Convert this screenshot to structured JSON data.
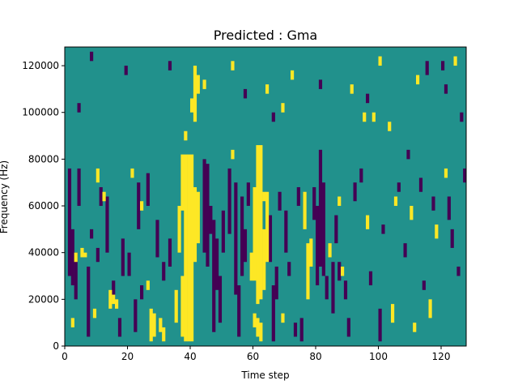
{
  "chart_data": {
    "type": "heatmap",
    "title": "Predicted : Gma",
    "xlabel": "Time step",
    "ylabel": "Frequency (Hz)",
    "xlim": [
      0,
      128
    ],
    "ylim": [
      0,
      128000
    ],
    "x_ticks": [
      0,
      20,
      40,
      60,
      80,
      100,
      120
    ],
    "y_ticks": [
      0,
      20000,
      40000,
      60000,
      80000,
      100000,
      120000
    ],
    "x_tick_labels": [
      "0",
      "20",
      "40",
      "60",
      "80",
      "100",
      "120"
    ],
    "y_tick_labels": [
      "0",
      "20000",
      "40000",
      "60000",
      "80000",
      "100000",
      "120000"
    ],
    "grid": false,
    "grid_shape": {
      "time_steps": 128,
      "frequency_bins": 128,
      "bin_hz": 1000
    },
    "levels": {
      "low": 0,
      "mid": 1,
      "high": 2
    },
    "background_level": "mid",
    "colors": {
      "low": "#440154",
      "mid": "#21918c",
      "high": "#fde725"
    },
    "high_cells": [
      [
        38,
        2,
        82
      ],
      [
        39,
        2,
        82
      ],
      [
        40,
        2,
        82
      ],
      [
        37,
        58,
        82
      ],
      [
        41,
        36,
        68
      ],
      [
        42,
        44,
        66
      ],
      [
        61,
        18,
        86
      ],
      [
        62,
        20,
        86
      ],
      [
        63,
        24,
        50
      ],
      [
        60,
        28,
        68
      ],
      [
        64,
        36,
        66
      ],
      [
        59,
        28,
        40
      ],
      [
        77,
        20,
        44
      ],
      [
        78,
        34,
        46
      ],
      [
        76,
        50,
        66
      ],
      [
        36,
        40,
        60
      ],
      [
        35,
        10,
        24
      ],
      [
        37,
        4,
        30
      ],
      [
        40,
        100,
        106
      ],
      [
        41,
        96,
        120
      ],
      [
        42,
        108,
        116
      ],
      [
        38,
        88,
        92
      ],
      [
        64,
        108,
        112
      ],
      [
        63,
        62,
        66
      ],
      [
        60,
        8,
        14
      ],
      [
        61,
        4,
        12
      ],
      [
        62,
        2,
        10
      ],
      [
        27,
        2,
        16
      ],
      [
        28,
        4,
        14
      ],
      [
        30,
        6,
        12
      ],
      [
        31,
        2,
        8
      ],
      [
        14,
        16,
        24
      ],
      [
        15,
        18,
        22
      ],
      [
        16,
        16,
        20
      ],
      [
        5,
        38,
        42
      ],
      [
        6,
        38,
        40
      ],
      [
        3,
        36,
        40
      ],
      [
        44,
        110,
        114
      ],
      [
        53,
        80,
        84
      ],
      [
        69,
        10,
        14
      ],
      [
        91,
        108,
        112
      ],
      [
        95,
        96,
        100
      ],
      [
        103,
        92,
        96
      ],
      [
        112,
        112,
        116
      ],
      [
        116,
        12,
        20
      ],
      [
        118,
        46,
        52
      ],
      [
        124,
        120,
        124
      ],
      [
        111,
        6,
        10
      ],
      [
        104,
        10,
        18
      ],
      [
        26,
        24,
        28
      ],
      [
        24,
        58,
        62
      ],
      [
        21,
        72,
        76
      ],
      [
        53,
        118,
        122
      ],
      [
        69,
        100,
        104
      ],
      [
        72,
        114,
        118
      ],
      [
        98,
        96,
        100
      ],
      [
        88,
        30,
        34
      ],
      [
        87,
        60,
        64
      ],
      [
        10,
        70,
        76
      ],
      [
        12,
        62,
        66
      ],
      [
        9,
        12,
        16
      ],
      [
        2,
        8,
        12
      ],
      [
        84,
        38,
        44
      ],
      [
        96,
        50,
        56
      ],
      [
        100,
        120,
        124
      ],
      [
        105,
        60,
        64
      ],
      [
        110,
        54,
        60
      ],
      [
        121,
        72,
        76
      ]
    ],
    "low_cells": [
      [
        1,
        30,
        76
      ],
      [
        2,
        26,
        50
      ],
      [
        3,
        20,
        40
      ],
      [
        4,
        60,
        76
      ],
      [
        7,
        4,
        34
      ],
      [
        8,
        46,
        50
      ],
      [
        10,
        36,
        42
      ],
      [
        11,
        60,
        68
      ],
      [
        13,
        40,
        64
      ],
      [
        15,
        20,
        28
      ],
      [
        17,
        4,
        12
      ],
      [
        18,
        30,
        46
      ],
      [
        20,
        30,
        40
      ],
      [
        22,
        6,
        20
      ],
      [
        23,
        50,
        70
      ],
      [
        24,
        20,
        26
      ],
      [
        26,
        60,
        74
      ],
      [
        29,
        38,
        54
      ],
      [
        31,
        28,
        36
      ],
      [
        33,
        34,
        46
      ],
      [
        44,
        40,
        80
      ],
      [
        45,
        34,
        78
      ],
      [
        46,
        48,
        60
      ],
      [
        47,
        6,
        54
      ],
      [
        48,
        24,
        46
      ],
      [
        49,
        10,
        30
      ],
      [
        50,
        40,
        58
      ],
      [
        52,
        48,
        76
      ],
      [
        54,
        22,
        70
      ],
      [
        55,
        4,
        26
      ],
      [
        56,
        30,
        64
      ],
      [
        57,
        36,
        50
      ],
      [
        58,
        60,
        70
      ],
      [
        65,
        36,
        56
      ],
      [
        66,
        2,
        26
      ],
      [
        67,
        20,
        34
      ],
      [
        68,
        58,
        66
      ],
      [
        70,
        40,
        58
      ],
      [
        71,
        30,
        36
      ],
      [
        73,
        4,
        10
      ],
      [
        74,
        60,
        68
      ],
      [
        75,
        2,
        12
      ],
      [
        79,
        54,
        68
      ],
      [
        80,
        26,
        60
      ],
      [
        81,
        34,
        84
      ],
      [
        82,
        30,
        70
      ],
      [
        83,
        20,
        30
      ],
      [
        85,
        14,
        36
      ],
      [
        86,
        44,
        56
      ],
      [
        87,
        28,
        36
      ],
      [
        89,
        20,
        28
      ],
      [
        90,
        4,
        12
      ],
      [
        92,
        62,
        70
      ],
      [
        94,
        70,
        76
      ],
      [
        97,
        26,
        32
      ],
      [
        100,
        2,
        16
      ],
      [
        101,
        48,
        52
      ],
      [
        106,
        66,
        70
      ],
      [
        108,
        38,
        44
      ],
      [
        109,
        80,
        84
      ],
      [
        113,
        66,
        72
      ],
      [
        114,
        24,
        28
      ],
      [
        117,
        58,
        64
      ],
      [
        120,
        118,
        122
      ],
      [
        122,
        54,
        64
      ],
      [
        123,
        42,
        50
      ],
      [
        125,
        30,
        34
      ],
      [
        127,
        70,
        76
      ],
      [
        4,
        100,
        104
      ],
      [
        8,
        122,
        126
      ],
      [
        19,
        116,
        120
      ],
      [
        33,
        118,
        122
      ],
      [
        57,
        106,
        110
      ],
      [
        66,
        96,
        100
      ],
      [
        81,
        110,
        114
      ],
      [
        96,
        104,
        108
      ],
      [
        115,
        116,
        122
      ],
      [
        121,
        108,
        112
      ],
      [
        126,
        96,
        100
      ]
    ]
  }
}
